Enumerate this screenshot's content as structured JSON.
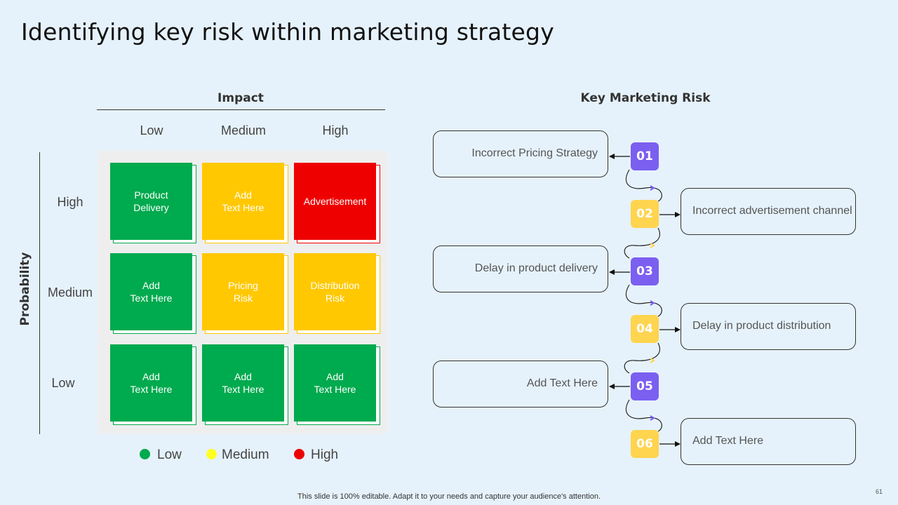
{
  "title": "Identifying key risk within marketing strategy",
  "matrix": {
    "impact_title": "Impact",
    "probability_title": "Probability",
    "columns": [
      "Low",
      "Medium",
      "High"
    ],
    "rows": [
      "High",
      "Medium",
      "Low"
    ],
    "cells": [
      [
        "Product\nDelivery",
        "Add\nText Here",
        "Advertisement"
      ],
      [
        "Add\nText Here",
        "Pricing\nRisk",
        "Distribution\nRisk"
      ],
      [
        "Add\nText Here",
        "Add\nText Here",
        "Add\nText Here"
      ]
    ],
    "cell_colors": [
      [
        "#00aa4e",
        "#ffc800",
        "#ee0000"
      ],
      [
        "#00aa4e",
        "#ffc800",
        "#ffc800"
      ],
      [
        "#00aa4e",
        "#00aa4e",
        "#00aa4e"
      ]
    ]
  },
  "legend": [
    {
      "label": "Low",
      "color": "#00aa4e"
    },
    {
      "label": "Medium",
      "color": "#ffff22"
    },
    {
      "label": "High",
      "color": "#ee0000"
    }
  ],
  "key_risk": {
    "title": "Key Marketing Risk",
    "items": [
      {
        "num": "01",
        "text": "Incorrect  Pricing Strategy",
        "side": "left",
        "color": "#7b5ff0"
      },
      {
        "num": "02",
        "text": "Incorrect  advertisement channel",
        "side": "right",
        "color": "#ffd44f"
      },
      {
        "num": "03",
        "text": "Delay in product delivery",
        "side": "left",
        "color": "#7b5ff0"
      },
      {
        "num": "04",
        "text": "Delay in product distribution",
        "side": "right",
        "color": "#ffd44f"
      },
      {
        "num": "05",
        "text": "Add Text Here",
        "side": "left",
        "color": "#7b5ff0"
      },
      {
        "num": "06",
        "text": "Add Text Here",
        "side": "right",
        "color": "#ffd44f"
      }
    ]
  },
  "footer": "This slide is 100% editable. Adapt it to your needs and capture your audience's attention.",
  "page_number": "61"
}
